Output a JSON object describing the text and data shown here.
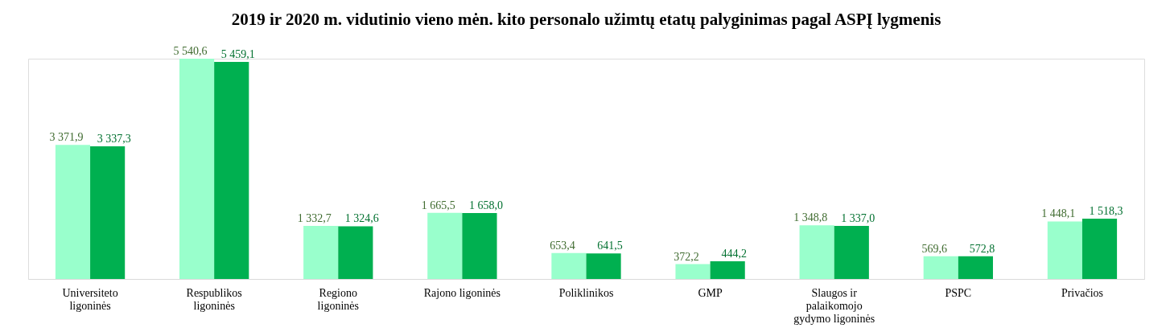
{
  "chart_data": {
    "type": "bar",
    "title": "2019 ir 2020 m. vidutinio vieno mėn. kito personalo užimtų etatų palyginimas pagal ASPĮ lygmenis",
    "categories": [
      "Universiteto ligoninės",
      "Respublikos ligoninės",
      "Regiono ligoninės",
      "Rajono ligoninės",
      "Poliklinikos",
      "GMP",
      "Slaugos ir palaikomojo gydymo ligoninės",
      "PSPC",
      "Privačios"
    ],
    "series": [
      {
        "color": "#99ffcc",
        "values": [
          3371.9,
          5540.6,
          1332.7,
          1665.5,
          653.4,
          372.2,
          1348.8,
          569.6,
          1448.1
        ],
        "value_labels": [
          "3 371,9",
          "5 540,6",
          "1 332,7",
          "1 665,5",
          "653,4",
          "372,2",
          "1 348,8",
          "569,6",
          "1 448,1"
        ]
      },
      {
        "color": "#00b050",
        "values": [
          3337.3,
          5459.1,
          1324.6,
          1658.0,
          641.5,
          444.2,
          1337.0,
          572.8,
          1518.3
        ],
        "value_labels": [
          "3 337,3",
          "5 459,1",
          "1 324,6",
          "1 658,0",
          "641,5",
          "444,2",
          "1 337,0",
          "572,8",
          "1 518,3"
        ]
      }
    ],
    "legend": false
  }
}
